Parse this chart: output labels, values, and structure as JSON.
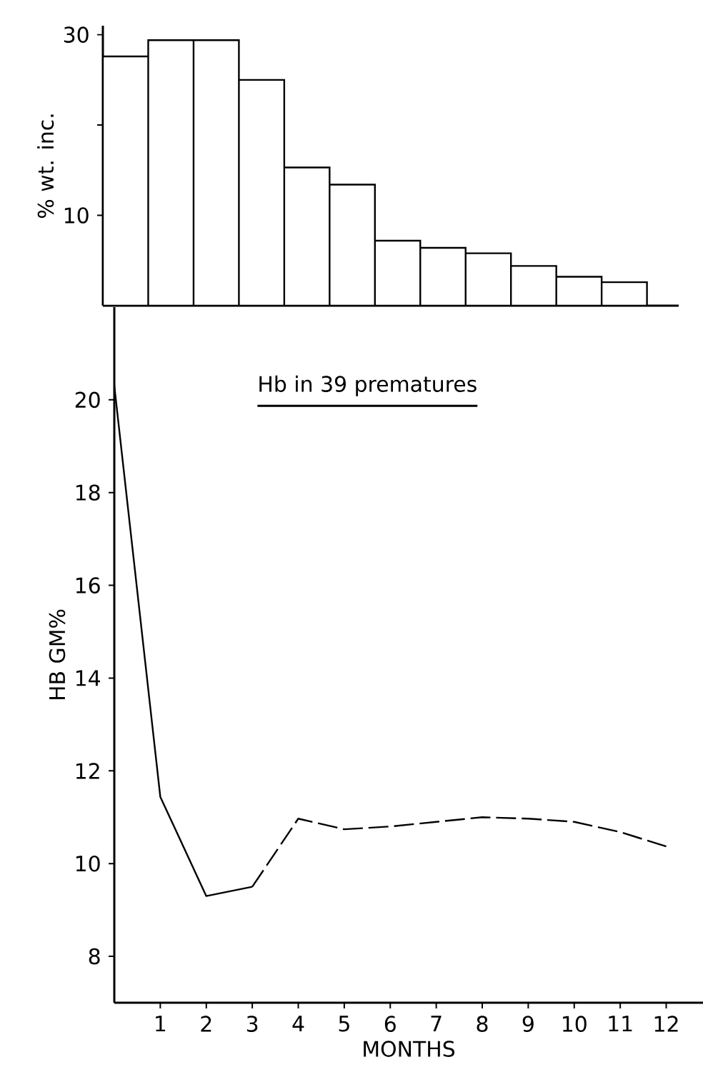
{
  "chart_data": [
    {
      "type": "bar",
      "categories": [
        null,
        null,
        null,
        null,
        null,
        null,
        null,
        null,
        null,
        null,
        null,
        null
      ],
      "values": [
        27.6,
        29.4,
        29.4,
        25.0,
        15.3,
        13.4,
        7.2,
        6.4,
        5.8,
        4.4,
        3.2,
        2.6
      ],
      "color": "#ffffff",
      "ylabel": "% wt. inc.",
      "ylim": [
        0,
        31
      ],
      "yticks": [
        10,
        {
          "value": 20,
          "label": null
        },
        30
      ],
      "tick_labels": "y"
    },
    {
      "type": "line",
      "title": "Hb in 39 prematures",
      "xlabel": "MONTHS",
      "ylabel": "HB  GM%",
      "xlim": [
        0,
        12.8
      ],
      "xticks": [
        1,
        2,
        3,
        4,
        5,
        6,
        7,
        8,
        9,
        10,
        11,
        12
      ],
      "ylim": [
        7,
        22
      ],
      "yticks": [
        8,
        10,
        12,
        14,
        16,
        18,
        20
      ],
      "series": [
        {
          "color": "#000000",
          "line_style": "solid",
          "x": [
            0,
            1,
            2,
            3
          ],
          "values": [
            20.3,
            11.44,
            9.3,
            9.5
          ]
        },
        {
          "color": "#000000",
          "line_style": "dashed",
          "x": [
            3,
            4,
            5,
            6,
            7,
            8,
            9,
            10,
            11,
            12
          ],
          "values": [
            9.5,
            10.97,
            10.74,
            10.8,
            10.9,
            11.0,
            10.97,
            10.9,
            10.68,
            10.37
          ]
        }
      ]
    }
  ]
}
